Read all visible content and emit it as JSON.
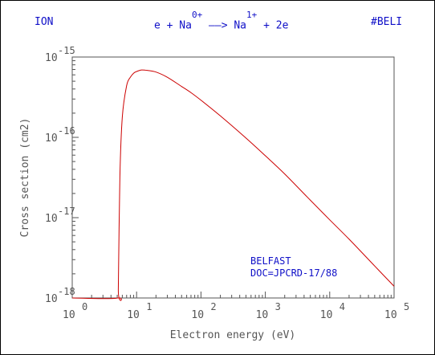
{
  "header": {
    "left": "ION",
    "reaction_pre": "e + Na",
    "reaction_sup1": "0+",
    "reaction_mid": "——> Na",
    "reaction_sup2": "1+",
    "reaction_post": "+ 2e",
    "right": "#BELI"
  },
  "annotation": {
    "line1": "BELFAST",
    "line2": "DOC=JPCRD-17/88"
  },
  "colors": {
    "curve": "#cc0000",
    "header_text": "#1010c8",
    "axis": "#555555"
  },
  "chart_data": {
    "type": "line",
    "title": "",
    "xlabel": "Electron energy (eV)",
    "ylabel": "Cross section (cm2)",
    "x_scale": "log",
    "y_scale": "log",
    "xlim": [
      1,
      100000
    ],
    "ylim": [
      1e-18,
      1e-15
    ],
    "x_ticks": [
      {
        "base": "10",
        "exp": "0"
      },
      {
        "base": "10",
        "exp": "1"
      },
      {
        "base": "10",
        "exp": "2"
      },
      {
        "base": "10",
        "exp": "3"
      },
      {
        "base": "10",
        "exp": "4"
      },
      {
        "base": "10",
        "exp": "5"
      }
    ],
    "y_ticks": [
      {
        "base": "10",
        "exp": "-18"
      },
      {
        "base": "10",
        "exp": "-17"
      },
      {
        "base": "10",
        "exp": "-16"
      },
      {
        "base": "10",
        "exp": "-15"
      }
    ],
    "grid": false,
    "series": [
      {
        "x": [
          1,
          5.14,
          5.2,
          5.5,
          6,
          7,
          8,
          9,
          10,
          12,
          15,
          20,
          30,
          50,
          70,
          100,
          200,
          500,
          1000,
          2000,
          5000,
          10000,
          20000,
          50000,
          100000
        ],
        "y": [
          1e-18,
          1e-18,
          1.3e-18,
          3.2e-17,
          1.8e-16,
          4.4e-16,
          5.6e-16,
          6.3e-16,
          6.6e-16,
          6.9e-16,
          6.8e-16,
          6.5e-16,
          5.6e-16,
          4.3e-16,
          3.6e-16,
          2.9e-16,
          1.85e-16,
          9.8e-17,
          5.9e-17,
          3.5e-17,
          1.65e-17,
          9.4e-18,
          5.4e-18,
          2.5e-18,
          1.4e-18
        ]
      }
    ]
  }
}
